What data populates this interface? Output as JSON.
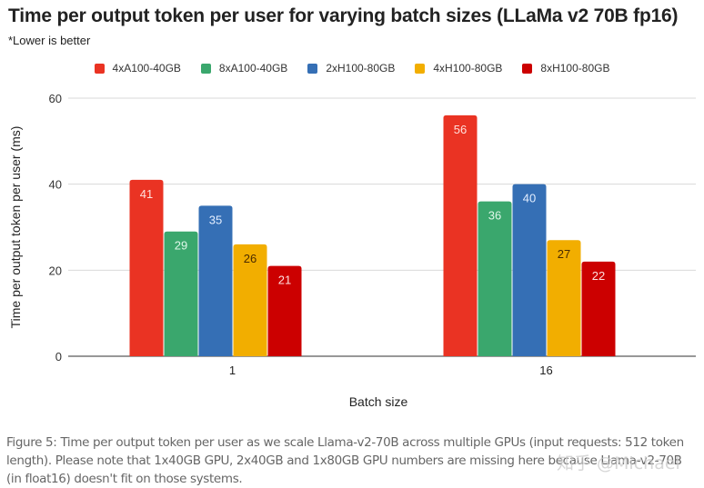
{
  "chart_data": {
    "type": "bar",
    "title": "Time per output token per user for varying batch sizes (LLaMa v2 70B fp16)",
    "subtitle": "*Lower is better",
    "xlabel": "Batch size",
    "ylabel": "Time per output token per user (ms)",
    "categories": [
      "1",
      "16"
    ],
    "series": [
      {
        "name": "4xA100-40GB",
        "color": "#EA3323",
        "label_color": "#FFE0DC",
        "values": [
          41,
          56
        ]
      },
      {
        "name": "8xA100-40GB",
        "color": "#3AA76D",
        "label_color": "#DFF7E9",
        "values": [
          29,
          36
        ]
      },
      {
        "name": "2xH100-80GB",
        "color": "#356FB5",
        "label_color": "#E3EEFF",
        "values": [
          35,
          40
        ]
      },
      {
        "name": "4xH100-80GB",
        "color": "#F2AE00",
        "label_color": "#4A2B00",
        "values": [
          26,
          27
        ]
      },
      {
        "name": "8xH100-80GB",
        "color": "#CC0000",
        "label_color": "#FFE0E0",
        "values": [
          21,
          22
        ]
      }
    ],
    "ylim": [
      0,
      60
    ],
    "yticks": [
      0,
      20,
      40,
      60
    ],
    "grid": true,
    "legend_position": "top-center",
    "data_labels": true
  },
  "caption": "Figure 5: Time per output token per user as we scale Llama-v2-70B across multiple GPUs (input requests: 512 token length). Please note that 1x40GB GPU, 2x40GB and 1x80GB GPU numbers are missing here because Llama-v2-70B (in float16) doesn't fit on those systems.",
  "watermark": "知乎 @Michael"
}
